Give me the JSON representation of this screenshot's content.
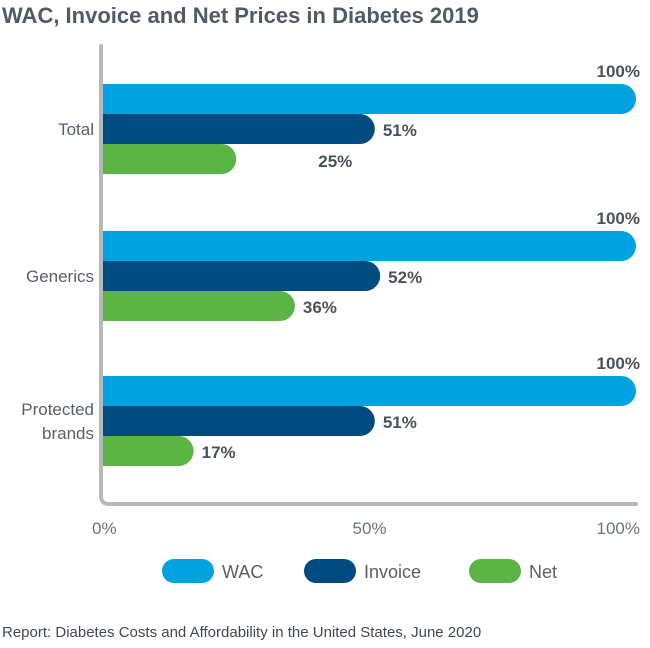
{
  "chart_data": {
    "type": "bar",
    "orientation": "horizontal",
    "title": "WAC, Invoice and Net Prices in Diabetes 2019",
    "categories": [
      "Total",
      "Generics",
      "Protected brands"
    ],
    "series": [
      {
        "name": "WAC",
        "color": "#00a3e0",
        "values": [
          100,
          100,
          100
        ]
      },
      {
        "name": "Invoice",
        "color": "#004b80",
        "values": [
          51,
          52,
          51
        ]
      },
      {
        "name": "Net",
        "color": "#5bb443",
        "values": [
          25,
          36,
          17
        ]
      }
    ],
    "value_labels": [
      [
        "100%",
        "51%",
        "25%"
      ],
      [
        "100%",
        "52%",
        "36%"
      ],
      [
        "100%",
        "51%",
        "17%"
      ]
    ],
    "xlim": [
      0,
      100
    ],
    "xticks": [
      0,
      50,
      100
    ],
    "xtick_labels": [
      "0%",
      "50%",
      "100%"
    ],
    "legend_position": "bottom",
    "grid": false
  },
  "footer": "Report: Diabetes Costs and Affordability in the United States, June 2020"
}
